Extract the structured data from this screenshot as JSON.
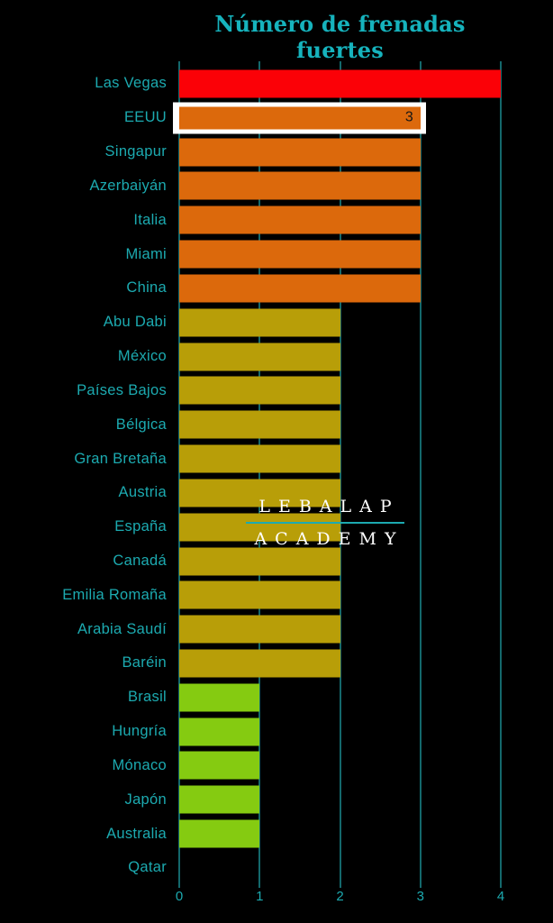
{
  "chart_data": {
    "type": "bar",
    "orientation": "horizontal",
    "title": "Número de frenadas fuertes",
    "categories": [
      "Las Vegas",
      "EEUU",
      "Singapur",
      "Azerbaiyán",
      "Italia",
      "Miami",
      "China",
      "Abu Dabi",
      "México",
      "Países Bajos",
      "Bélgica",
      "Gran Bretaña",
      "Austria",
      "España",
      "Canadá",
      "Emilia Romaña",
      "Arabia Saudí",
      "Baréin",
      "Brasil",
      "Hungría",
      "Mónaco",
      "Japón",
      "Australia",
      "Qatar"
    ],
    "values": [
      4,
      3,
      3,
      3,
      3,
      3,
      3,
      2,
      2,
      2,
      2,
      2,
      2,
      2,
      2,
      2,
      2,
      2,
      1,
      1,
      1,
      1,
      1,
      0
    ],
    "xlim": [
      0,
      4
    ],
    "x_ticks": [
      "0",
      "1",
      "2",
      "3",
      "4"
    ],
    "grid": "vertical",
    "highlighted_category": "EEUU",
    "highlighted_value_label": "3",
    "value_colors": {
      "4": "#fb0107",
      "3": "#dc690c",
      "2": "#b89e08",
      "1": "#85cb11"
    }
  },
  "watermark": {
    "line1": "LEBALAP",
    "line2": "ACADEMY"
  },
  "theme": {
    "background": "#000000",
    "accent_teal": "#1caab0",
    "gridline": "#14686c",
    "title_color": "#16b3bd",
    "highlight_border": "#ffffff"
  }
}
